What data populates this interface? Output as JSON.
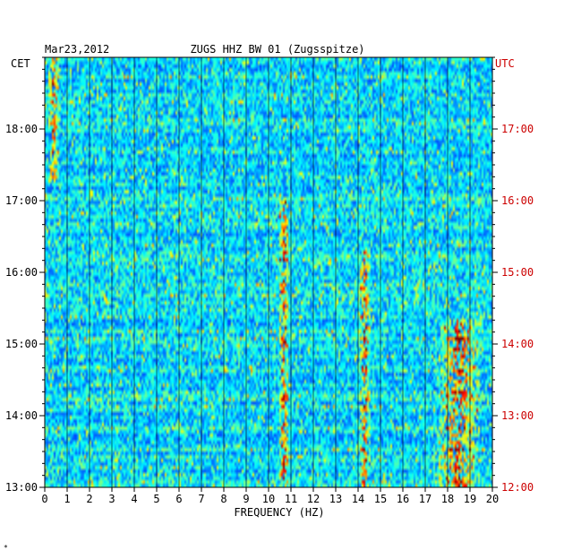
{
  "chart_data": {
    "type": "heatmap",
    "date": "Mar23,2012",
    "title": "ZUGS HHZ BW 01 (Zugsspitze)",
    "left_axis_label": "CET",
    "right_axis_label": "UTC",
    "xlabel": "FREQUENCY (HZ)",
    "xlim": [
      0,
      20
    ],
    "x_ticks": [
      "0",
      "1",
      "2",
      "3",
      "4",
      "5",
      "6",
      "7",
      "8",
      "9",
      "10",
      "11",
      "12",
      "13",
      "14",
      "15",
      "16",
      "17",
      "18",
      "19",
      "20"
    ],
    "ylim_cet": [
      "13:00",
      "19:00"
    ],
    "y_ticks_cet": [
      "18:00",
      "17:00",
      "16:00",
      "15:00",
      "14:00",
      "13:00"
    ],
    "y_ticks_utc": [
      "17:00",
      "16:00",
      "15:00",
      "14:00",
      "13:00",
      "12:00"
    ],
    "colors": {
      "utc": "#cc0000",
      "background_low": "#0000a0",
      "high": "#ff0000"
    },
    "spectral_features": [
      {
        "freq_hz": 10.7,
        "from": "13:00",
        "to": "17:00",
        "description": "narrow persistent band"
      },
      {
        "freq_hz": 14.3,
        "from": "13:00",
        "to": "16:20",
        "description": "intermittent band"
      },
      {
        "freq_hz": 0.4,
        "from": "17:15",
        "to": "19:00",
        "description": "strong low-frequency energy"
      },
      {
        "freq_hz": 18.5,
        "from": "13:00",
        "to": "15:20",
        "description": "broadband bursts"
      }
    ]
  },
  "footer_mark": "*"
}
